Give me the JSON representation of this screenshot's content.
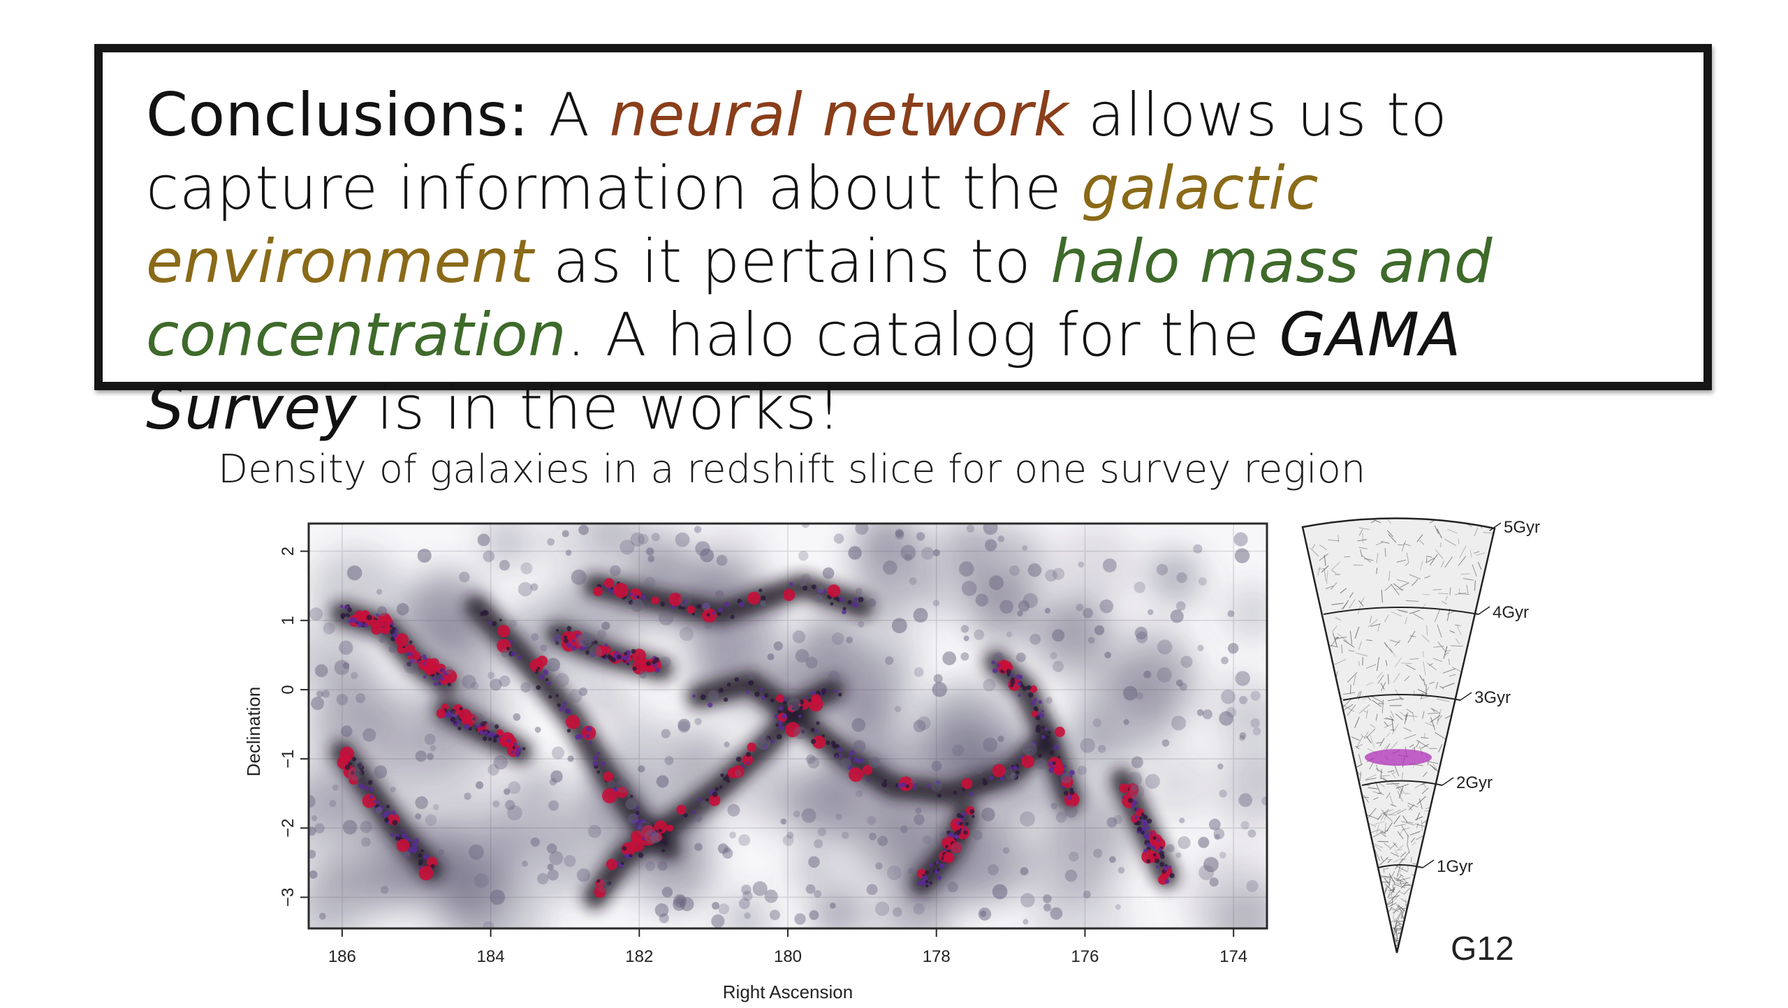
{
  "conclusions": {
    "lead": "Conclusions:",
    "t1": " A ",
    "e1": "neural network",
    "t2": " allows us to capture information about the ",
    "e2": "galactic environment",
    "t3": " as it pertains to ",
    "e3": "halo mass and concentration",
    "t4": ". A halo catalog for the ",
    "e4": "GAMA Survey",
    "t5": " is in the works!"
  },
  "caption": "Density of galaxies in a redshift slice for one survey region",
  "map": {
    "xlabel": "Right Ascension",
    "ylabel": "Declination",
    "xticks": [
      "186",
      "184",
      "182",
      "180",
      "178",
      "176",
      "174"
    ],
    "yticks": [
      "2",
      "1",
      "0",
      "−1",
      "−2",
      "−3"
    ]
  },
  "cone": {
    "labels": [
      "5Gyr",
      "4Gyr",
      "3Gyr",
      "2Gyr",
      "1Gyr"
    ],
    "region": "G12"
  }
}
